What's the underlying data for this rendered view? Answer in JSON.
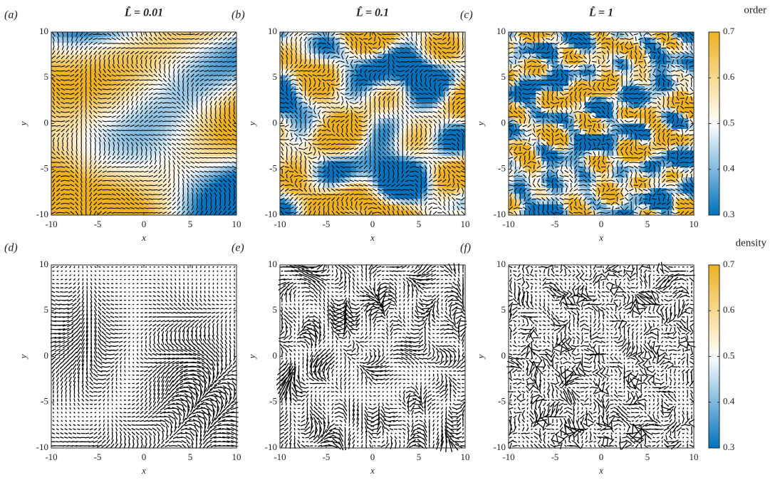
{
  "chart_data": [
    {
      "type": "quiver",
      "panel_label": "(a)",
      "title": "L̂ = 0.01",
      "xlabel": "x",
      "ylabel": "y",
      "xlim": [
        -10,
        10
      ],
      "ylim": [
        -10,
        10
      ],
      "xticks": [
        -10,
        -5,
        0,
        5,
        10
      ],
      "yticks": [
        -10,
        -5,
        0,
        5,
        10
      ]
    },
    {
      "type": "quiver",
      "panel_label": "(b)",
      "title": "L̂ = 0.1",
      "xlabel": "x",
      "ylabel": "y",
      "xlim": [
        -10,
        10
      ],
      "ylim": [
        -10,
        10
      ],
      "xticks": [
        -10,
        -5,
        0,
        5,
        10
      ],
      "yticks": [
        -10,
        -5,
        0,
        5,
        10
      ]
    },
    {
      "type": "quiver",
      "panel_label": "(c)",
      "title": "L̂ = 1",
      "xlabel": "x",
      "ylabel": "y",
      "xlim": [
        -10,
        10
      ],
      "ylim": [
        -10,
        10
      ],
      "xticks": [
        -10,
        -5,
        0,
        5,
        10
      ],
      "yticks": [
        -10,
        -5,
        0,
        5,
        10
      ]
    },
    {
      "type": "quiver",
      "panel_label": "(d)",
      "xlabel": "x",
      "ylabel": "y",
      "xlim": [
        -10,
        10
      ],
      "ylim": [
        -10,
        10
      ],
      "xticks": [
        -10,
        -5,
        0,
        5,
        10
      ],
      "yticks": [
        -10,
        -5,
        0,
        5,
        10
      ]
    },
    {
      "type": "quiver",
      "panel_label": "(e)",
      "xlabel": "x",
      "ylabel": "y",
      "xlim": [
        -10,
        10
      ],
      "ylim": [
        -10,
        10
      ],
      "xticks": [
        -10,
        -5,
        0,
        5,
        10
      ],
      "yticks": [
        -10,
        -5,
        0,
        5,
        10
      ]
    },
    {
      "type": "quiver",
      "panel_label": "(f)",
      "xlabel": "x",
      "ylabel": "y",
      "xlim": [
        -10,
        10
      ],
      "ylim": [
        -10,
        10
      ],
      "xticks": [
        -10,
        -5,
        0,
        5,
        10
      ],
      "yticks": [
        -10,
        -5,
        0,
        5,
        10
      ]
    },
    {
      "type": "colorbar",
      "label": "order",
      "clim": [
        0.3,
        0.7
      ],
      "ticks": [
        0.3,
        0.4,
        0.5,
        0.6,
        0.7
      ],
      "colors": [
        "#0072bd",
        "#ffffff",
        "#edb120"
      ]
    },
    {
      "type": "colorbar",
      "label": "density",
      "clim": [
        0.3,
        0.7
      ],
      "ticks": [
        0.3,
        0.4,
        0.5,
        0.6,
        0.7
      ],
      "colors": [
        "#0072bd",
        "#ffffff",
        "#edb120"
      ]
    }
  ]
}
